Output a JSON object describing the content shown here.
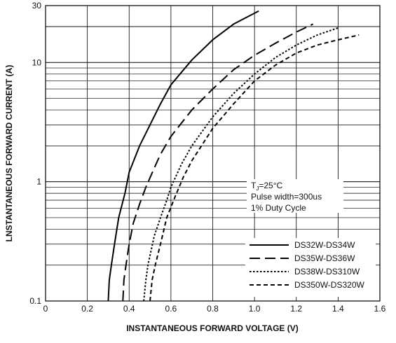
{
  "chart_data": {
    "type": "line",
    "title": "",
    "xlabel": "INSTANTANEOUS FORWARD VOLTAGE (V)",
    "ylabel": "LNSTANTANEOUS FORWARD CURRENT (A)",
    "xlim": [
      0,
      1.6
    ],
    "ylim": [
      0.1,
      30
    ],
    "y_scale": "log",
    "grid": true,
    "x_ticks": [
      0,
      0.2,
      0.4,
      0.6,
      0.8,
      1.0,
      1.2,
      1.4,
      1.6
    ],
    "x_tick_labels": [
      "0",
      "0.2",
      "0.4",
      "0.6",
      "0.8",
      "1.0",
      "1.2",
      "1.4",
      "1.6"
    ],
    "y_tick_labels": [
      "0.1",
      "1",
      "10",
      "30"
    ],
    "legend_position": "bottom-right",
    "annotation": {
      "tj_main": "T",
      "tj_sub": "J",
      "tj_rest": "=25°C",
      "line2": "Pulse width=300us",
      "line3": "1% Duty Cycle"
    },
    "series": [
      {
        "name": "DS32W-DS34W",
        "dash": "solid",
        "points": [
          [
            0.3,
            0.1
          ],
          [
            0.305,
            0.15
          ],
          [
            0.315,
            0.2
          ],
          [
            0.33,
            0.3
          ],
          [
            0.35,
            0.5
          ],
          [
            0.38,
            0.8
          ],
          [
            0.4,
            1.2
          ],
          [
            0.45,
            2.0
          ],
          [
            0.5,
            3.0
          ],
          [
            0.55,
            4.5
          ],
          [
            0.6,
            6.5
          ],
          [
            0.7,
            10.5
          ],
          [
            0.8,
            15.5
          ],
          [
            0.9,
            21
          ],
          [
            1.02,
            27
          ]
        ]
      },
      {
        "name": "DS35W-DS36W",
        "dash": "long",
        "points": [
          [
            0.37,
            0.1
          ],
          [
            0.375,
            0.15
          ],
          [
            0.385,
            0.2
          ],
          [
            0.4,
            0.3
          ],
          [
            0.42,
            0.45
          ],
          [
            0.45,
            0.65
          ],
          [
            0.48,
            0.9
          ],
          [
            0.52,
            1.3
          ],
          [
            0.55,
            1.7
          ],
          [
            0.6,
            2.4
          ],
          [
            0.7,
            4.0
          ],
          [
            0.8,
            6.0
          ],
          [
            0.9,
            8.7
          ],
          [
            1.0,
            11.5
          ],
          [
            1.1,
            14.5
          ],
          [
            1.2,
            18
          ],
          [
            1.28,
            21
          ]
        ]
      },
      {
        "name": "DS38W-DS310W",
        "dash": "dotted",
        "points": [
          [
            0.47,
            0.1
          ],
          [
            0.48,
            0.15
          ],
          [
            0.49,
            0.2
          ],
          [
            0.52,
            0.35
          ],
          [
            0.55,
            0.5
          ],
          [
            0.58,
            0.7
          ],
          [
            0.6,
            0.9
          ],
          [
            0.65,
            1.4
          ],
          [
            0.7,
            2.0
          ],
          [
            0.8,
            3.5
          ],
          [
            0.9,
            5.5
          ],
          [
            1.0,
            8.0
          ],
          [
            1.1,
            11
          ],
          [
            1.2,
            14
          ],
          [
            1.3,
            17
          ],
          [
            1.4,
            19.5
          ]
        ]
      },
      {
        "name": "DS350W-DS320W",
        "dash": "short",
        "points": [
          [
            0.5,
            0.1
          ],
          [
            0.51,
            0.15
          ],
          [
            0.525,
            0.2
          ],
          [
            0.55,
            0.3
          ],
          [
            0.58,
            0.5
          ],
          [
            0.62,
            0.75
          ],
          [
            0.66,
            1.1
          ],
          [
            0.7,
            1.5
          ],
          [
            0.8,
            2.8
          ],
          [
            0.9,
            4.5
          ],
          [
            1.0,
            7.0
          ],
          [
            1.1,
            9.5
          ],
          [
            1.2,
            12
          ],
          [
            1.3,
            14
          ],
          [
            1.4,
            15.5
          ],
          [
            1.5,
            17
          ]
        ]
      }
    ]
  }
}
